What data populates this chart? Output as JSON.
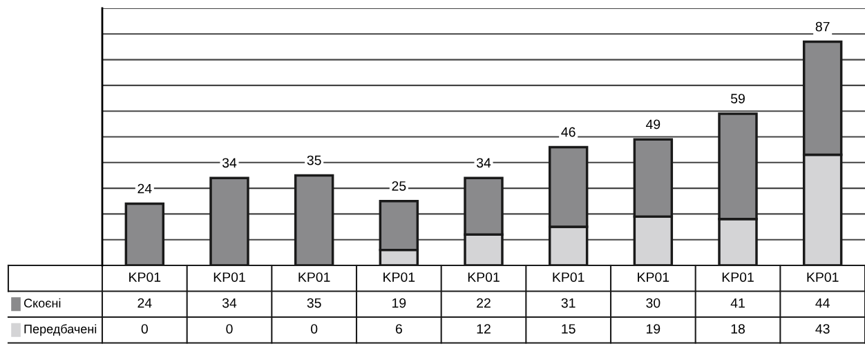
{
  "chart_data": {
    "type": "bar",
    "stacked": true,
    "categories": [
      "KP01",
      "KP01",
      "KP01",
      "KP01",
      "KP01",
      "KP01",
      "KP01",
      "KP01",
      "KP01"
    ],
    "series": [
      {
        "name": "Передбачені",
        "color": "#d4d4d6",
        "values": [
          0,
          0,
          0,
          6,
          12,
          15,
          19,
          18,
          43
        ]
      },
      {
        "name": "Скоєні",
        "color": "#8a8a8c",
        "values": [
          24,
          34,
          35,
          19,
          22,
          31,
          30,
          41,
          44
        ]
      }
    ],
    "totals": [
      "24",
      "34",
      "35",
      "25",
      "34",
      "46",
      "49",
      "59",
      "87"
    ],
    "data_labels": true,
    "ylim": [
      0,
      100
    ],
    "yticks": [
      {
        "value": 0,
        "label": null
      },
      {
        "value": 10,
        "label": null
      },
      {
        "value": 20,
        "label": null
      },
      {
        "value": 30,
        "label": null
      },
      {
        "value": 40,
        "label": null
      },
      {
        "value": 50,
        "label": null
      },
      {
        "value": 60,
        "label": null
      },
      {
        "value": 70,
        "label": null
      },
      {
        "value": 80,
        "label": null
      },
      {
        "value": 90,
        "label": null
      },
      {
        "value": 100,
        "label": null
      }
    ],
    "grid": "y",
    "legend": "left",
    "tick_labels": "x"
  }
}
